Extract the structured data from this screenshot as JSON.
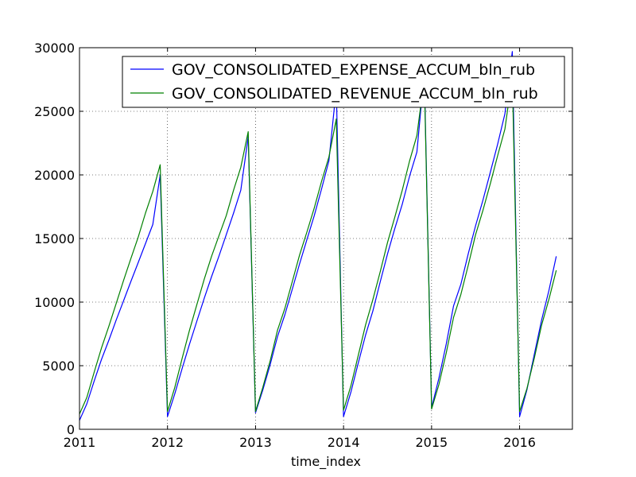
{
  "chart_data": {
    "type": "line",
    "title": "",
    "xlabel": "time_index",
    "ylabel": "",
    "xlim": [
      2011.0,
      2016.6
    ],
    "ylim": [
      0,
      30000
    ],
    "x_ticks": [
      2011,
      2012,
      2013,
      2014,
      2015,
      2016
    ],
    "x_tick_labels": [
      "2011",
      "2012",
      "2013",
      "2014",
      "2015",
      "2016"
    ],
    "y_ticks": [
      0,
      5000,
      10000,
      15000,
      20000,
      25000,
      30000
    ],
    "y_tick_labels": [
      "0",
      "5000",
      "10000",
      "15000",
      "20000",
      "25000",
      "30000"
    ],
    "grid": true,
    "legend_position": "top-right",
    "series": [
      {
        "name": "GOV_CONSOLIDATED_EXPENSE_ACCUM_bln_rub",
        "color": "#0000ff",
        "points": [
          [
            2011.0,
            700
          ],
          [
            2011.083,
            2000
          ],
          [
            2011.167,
            3800
          ],
          [
            2011.25,
            5500
          ],
          [
            2011.333,
            7000
          ],
          [
            2011.417,
            8600
          ],
          [
            2011.5,
            10100
          ],
          [
            2011.583,
            11600
          ],
          [
            2011.667,
            13100
          ],
          [
            2011.75,
            14600
          ],
          [
            2011.833,
            16100
          ],
          [
            2011.917,
            20000
          ],
          [
            2012.0,
            1000
          ],
          [
            2012.083,
            2800
          ],
          [
            2012.167,
            4800
          ],
          [
            2012.25,
            6700
          ],
          [
            2012.333,
            8500
          ],
          [
            2012.417,
            10300
          ],
          [
            2012.5,
            12000
          ],
          [
            2012.583,
            13600
          ],
          [
            2012.667,
            15300
          ],
          [
            2012.75,
            17000
          ],
          [
            2012.833,
            18800
          ],
          [
            2012.917,
            23000
          ],
          [
            2013.0,
            1300
          ],
          [
            2013.083,
            3100
          ],
          [
            2013.167,
            5100
          ],
          [
            2013.25,
            7300
          ],
          [
            2013.333,
            9000
          ],
          [
            2013.417,
            11000
          ],
          [
            2013.5,
            13000
          ],
          [
            2013.583,
            14900
          ],
          [
            2013.667,
            16800
          ],
          [
            2013.75,
            18900
          ],
          [
            2013.833,
            21100
          ],
          [
            2013.917,
            26800
          ],
          [
            2014.0,
            1000
          ],
          [
            2014.083,
            2900
          ],
          [
            2014.167,
            5200
          ],
          [
            2014.25,
            7400
          ],
          [
            2014.333,
            9300
          ],
          [
            2014.417,
            11600
          ],
          [
            2014.5,
            13800
          ],
          [
            2014.583,
            15800
          ],
          [
            2014.667,
            17700
          ],
          [
            2014.75,
            19900
          ],
          [
            2014.833,
            21800
          ],
          [
            2014.917,
            28100
          ],
          [
            2015.0,
            1700
          ],
          [
            2015.083,
            4000
          ],
          [
            2015.167,
            6700
          ],
          [
            2015.25,
            9700
          ],
          [
            2015.333,
            11400
          ],
          [
            2015.417,
            13800
          ],
          [
            2015.5,
            16000
          ],
          [
            2015.583,
            18000
          ],
          [
            2015.667,
            20200
          ],
          [
            2015.75,
            22400
          ],
          [
            2015.833,
            24800
          ],
          [
            2015.917,
            29700
          ],
          [
            2016.0,
            1000
          ],
          [
            2016.083,
            3100
          ],
          [
            2016.167,
            5900
          ],
          [
            2016.25,
            8600
          ],
          [
            2016.333,
            10900
          ],
          [
            2016.417,
            13600
          ]
        ]
      },
      {
        "name": "GOV_CONSOLIDATED_REVENUE_ACCUM_bln_rub",
        "color": "#008000",
        "points": [
          [
            2011.0,
            1200
          ],
          [
            2011.083,
            2500
          ],
          [
            2011.167,
            4500
          ],
          [
            2011.25,
            6400
          ],
          [
            2011.333,
            8100
          ],
          [
            2011.417,
            9900
          ],
          [
            2011.5,
            11700
          ],
          [
            2011.583,
            13400
          ],
          [
            2011.667,
            15100
          ],
          [
            2011.75,
            17000
          ],
          [
            2011.833,
            18700
          ],
          [
            2011.917,
            20800
          ],
          [
            2012.0,
            1400
          ],
          [
            2012.083,
            3300
          ],
          [
            2012.167,
            5600
          ],
          [
            2012.25,
            7800
          ],
          [
            2012.333,
            9800
          ],
          [
            2012.417,
            11800
          ],
          [
            2012.5,
            13600
          ],
          [
            2012.583,
            15200
          ],
          [
            2012.667,
            16800
          ],
          [
            2012.75,
            18800
          ],
          [
            2012.833,
            20600
          ],
          [
            2012.917,
            23400
          ],
          [
            2013.0,
            1400
          ],
          [
            2013.083,
            3300
          ],
          [
            2013.167,
            5400
          ],
          [
            2013.25,
            7800
          ],
          [
            2013.333,
            9500
          ],
          [
            2013.417,
            11600
          ],
          [
            2013.5,
            13700
          ],
          [
            2013.583,
            15500
          ],
          [
            2013.667,
            17400
          ],
          [
            2013.75,
            19500
          ],
          [
            2013.833,
            21400
          ],
          [
            2013.917,
            24400
          ],
          [
            2014.0,
            1500
          ],
          [
            2014.083,
            3400
          ],
          [
            2014.167,
            5800
          ],
          [
            2014.25,
            8200
          ],
          [
            2014.333,
            10200
          ],
          [
            2014.417,
            12400
          ],
          [
            2014.5,
            14700
          ],
          [
            2014.583,
            16700
          ],
          [
            2014.667,
            18800
          ],
          [
            2014.75,
            21100
          ],
          [
            2014.833,
            23100
          ],
          [
            2014.917,
            27600
          ],
          [
            2015.0,
            1600
          ],
          [
            2015.083,
            3500
          ],
          [
            2015.167,
            6000
          ],
          [
            2015.25,
            8800
          ],
          [
            2015.333,
            10600
          ],
          [
            2015.417,
            12900
          ],
          [
            2015.5,
            15300
          ],
          [
            2015.583,
            17200
          ],
          [
            2015.667,
            19300
          ],
          [
            2015.75,
            21500
          ],
          [
            2015.833,
            23600
          ],
          [
            2015.917,
            27800
          ],
          [
            2016.0,
            1400
          ],
          [
            2016.083,
            3200
          ],
          [
            2016.167,
            5600
          ],
          [
            2016.25,
            8200
          ],
          [
            2016.333,
            10200
          ],
          [
            2016.417,
            12500
          ]
        ]
      }
    ]
  }
}
